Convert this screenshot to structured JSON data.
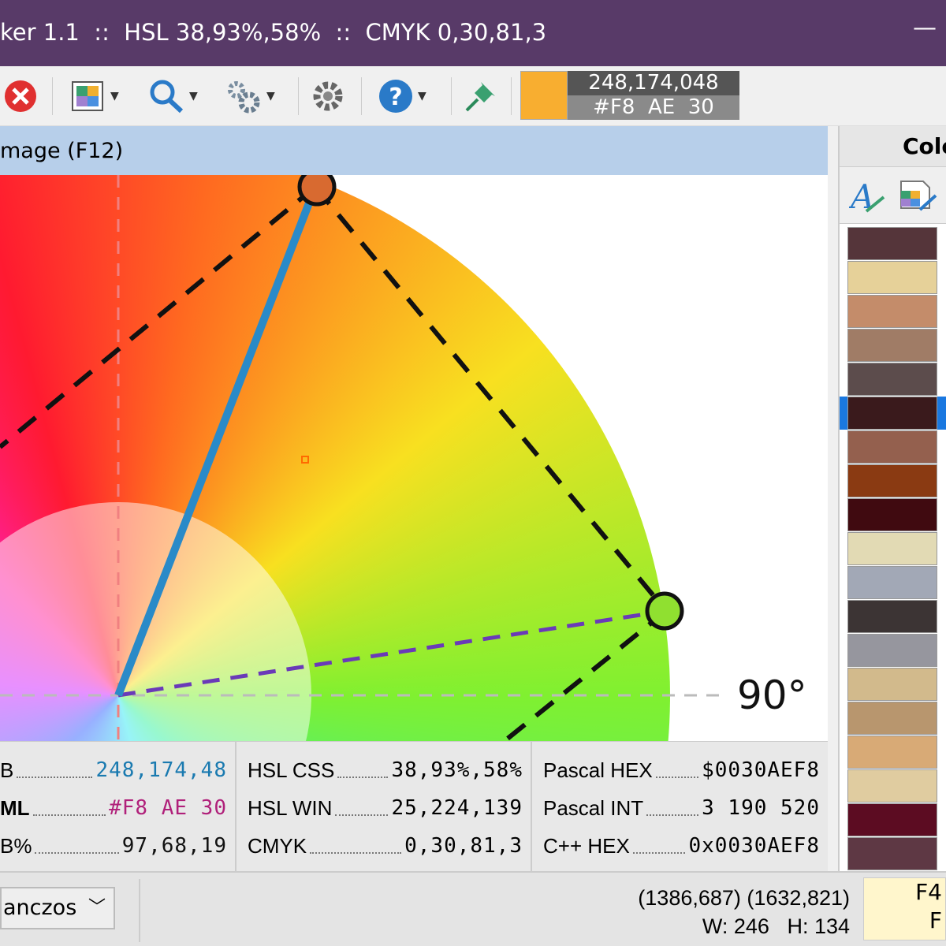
{
  "title_bar": {
    "title": "ker 1.1  ::  HSL 38,93%,58%  ::  CMYK 0,30,81,3",
    "minimize": "—"
  },
  "toolbar": {
    "icons": [
      "close-icon",
      "palette-icon",
      "magnifier-icon",
      "gears-icon",
      "settings-icon",
      "help-icon",
      "pin-icon"
    ],
    "current_color": "#F8AE30",
    "rgb_text": "248,174,048",
    "hex_text": "#F8  AE  30"
  },
  "panel": {
    "title": "mage (F12)",
    "angle_label": "90°"
  },
  "info": {
    "col1": [
      {
        "label": "B",
        "value": "248,174,48",
        "color": "#1a7ab0"
      },
      {
        "label": "ML",
        "value": "#F8 AE 30",
        "color": "#b0207a"
      },
      {
        "label": "B%",
        "value": "97,68,19",
        "color": "#111111"
      }
    ],
    "col2": [
      {
        "label": "HSL CSS",
        "value": "38,93%,58%"
      },
      {
        "label": "HSL WIN",
        "value": "25,224,139"
      },
      {
        "label": "CMYK",
        "value": "0,30,81,3"
      }
    ],
    "col3": [
      {
        "label": "Pascal HEX",
        "value": "$0030AEF8"
      },
      {
        "label": "Pascal INT",
        "value": "3 190 520"
      },
      {
        "label": "C++ HEX",
        "value": "0x0030AEF8"
      }
    ]
  },
  "right_panel": {
    "title": "Colo",
    "swatches": [
      "#55353a",
      "#e6d199",
      "#c48c6a",
      "#a07c66",
      "#5c4c4c",
      "#3a1a1c",
      "#94604e",
      "#8a3a12",
      "#400a10",
      "#e2dab4",
      "#a2a8b6",
      "#3c3434",
      "#96969e",
      "#d2ba8c",
      "#b8966e",
      "#d8aa76",
      "#e0cca0",
      "#5c0c22",
      "#5e3844"
    ],
    "selected_index": 5
  },
  "bottom": {
    "resample": "anczos",
    "coords": "(1386,687) (1632,821)",
    "size": "W: 246   H: 134",
    "keys": [
      "F4",
      "F"
    ]
  }
}
